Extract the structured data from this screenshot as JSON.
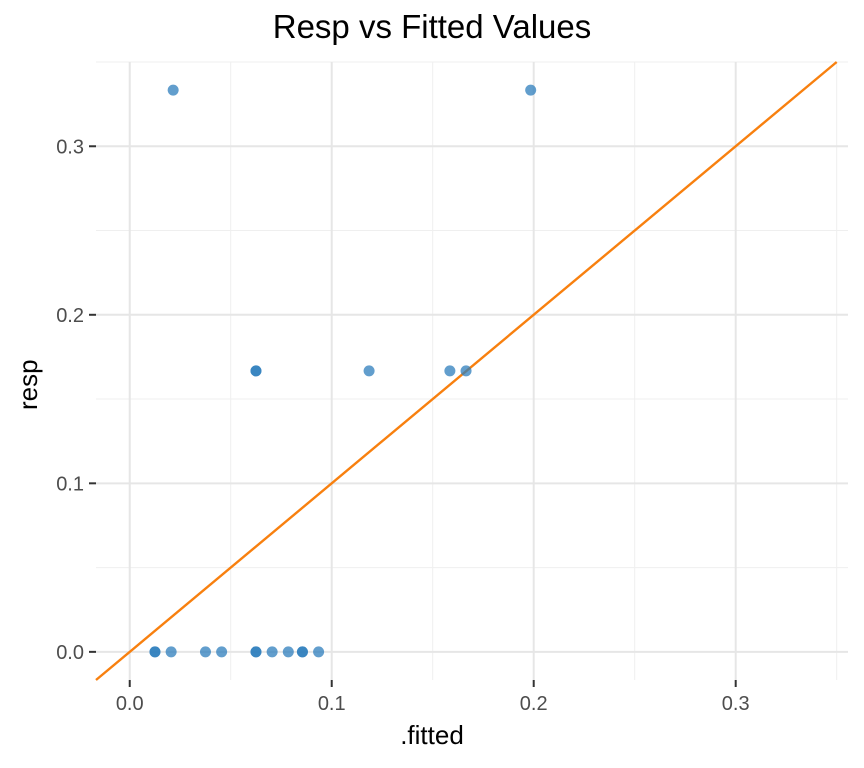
{
  "chart_data": {
    "type": "scatter",
    "title": "Resp vs Fitted Values",
    "xlabel": ".fitted",
    "ylabel": "resp",
    "xlim": [
      -0.0167,
      0.3556
    ],
    "ylim": [
      -0.0167,
      0.35
    ],
    "xticks": [
      0.0,
      0.1,
      0.2,
      0.3
    ],
    "xtick_labels": [
      "0.0",
      "0.1",
      "0.2",
      "0.3"
    ],
    "yticks": [
      0.0,
      0.1,
      0.2,
      0.3
    ],
    "ytick_labels": [
      "0.0",
      "0.1",
      "0.2",
      "0.3"
    ],
    "grid": true,
    "point_color": "#2E7EBC",
    "line_color": "#F8800F",
    "reference_line": {
      "slope": 1,
      "intercept": 0
    },
    "series": [
      {
        "x": [
          0.0125,
          0.0125,
          0.0205,
          0.0375,
          0.0455,
          0.0625,
          0.0625,
          0.0705,
          0.0785,
          0.0855,
          0.0855,
          0.0935,
          0.0625,
          0.0625,
          0.1185,
          0.1585,
          0.1665,
          0.0215,
          0.1985
        ],
        "y": [
          0,
          0,
          0,
          0,
          0,
          0,
          0,
          0,
          0,
          0,
          0,
          0,
          0.1667,
          0.1667,
          0.1667,
          0.1667,
          0.1667,
          0.3333,
          0.3333
        ]
      }
    ]
  }
}
